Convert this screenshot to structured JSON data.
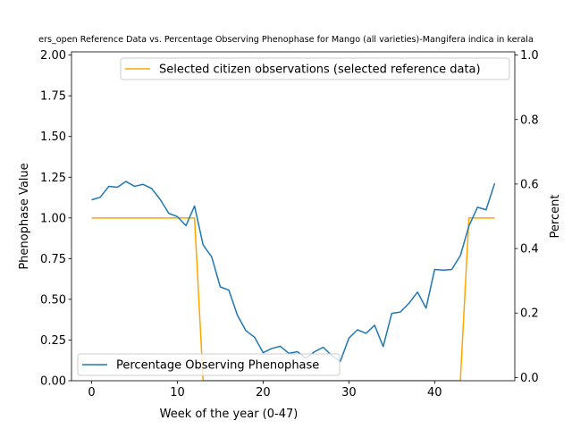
{
  "chart_data": {
    "type": "line",
    "title": "ers_open Reference Data vs. Percentage Observing Phenophase for Mango (all varieties)-Mangifera indica in kerala",
    "xlabel": "Week of the year (0-47)",
    "ylabel_left": "Phenophase Value",
    "ylabel_right": "Percent",
    "xlim": [
      -2.35,
      49.35
    ],
    "ylim_left": [
      0,
      2.02
    ],
    "ylim_right": [
      -0.01,
      1.01
    ],
    "x_ticks": [
      "0",
      "10",
      "20",
      "30",
      "40"
    ],
    "y_left_ticks": [
      "0.00",
      "0.25",
      "0.50",
      "0.75",
      "1.00",
      "1.25",
      "1.50",
      "1.75",
      "2.00"
    ],
    "y_right_ticks": [
      "0.0",
      "0.2",
      "0.4",
      "0.6",
      "0.8",
      "1.0"
    ],
    "grid": false,
    "series": [
      {
        "name": "Selected citizen observations (selected reference data)",
        "axis": "left",
        "color": "#ffa500",
        "legend_position": "upper right",
        "x": [
          0,
          1,
          2,
          3,
          4,
          5,
          6,
          7,
          8,
          9,
          10,
          11,
          12,
          13,
          14,
          15,
          16,
          17,
          18,
          19,
          20,
          21,
          22,
          23,
          24,
          25,
          26,
          27,
          28,
          29,
          30,
          31,
          32,
          33,
          34,
          35,
          36,
          37,
          38,
          39,
          40,
          41,
          42,
          43,
          44,
          45,
          46,
          47
        ],
        "values": [
          1,
          1,
          1,
          1,
          1,
          1,
          1,
          1,
          1,
          1,
          1,
          1,
          1,
          0,
          0,
          0,
          0,
          0,
          0,
          0,
          0,
          0,
          0,
          0,
          0,
          0,
          0,
          0,
          0,
          0,
          0,
          0,
          0,
          0,
          0,
          0,
          0,
          0,
          0,
          0,
          0,
          0,
          0,
          0,
          1,
          1,
          1,
          1
        ]
      },
      {
        "name": "Percentage Observing Phenophase",
        "axis": "right",
        "color": "#1f77b4",
        "legend_position": "lower left",
        "x": [
          0,
          1,
          2,
          3,
          4,
          5,
          6,
          7,
          8,
          9,
          10,
          11,
          12,
          13,
          14,
          15,
          16,
          17,
          18,
          19,
          20,
          21,
          22,
          23,
          24,
          25,
          26,
          27,
          28,
          29,
          30,
          31,
          32,
          33,
          34,
          35,
          36,
          37,
          38,
          39,
          40,
          41,
          42,
          43,
          44,
          45,
          46,
          47
        ],
        "values": [
          0.551,
          0.559,
          0.593,
          0.59,
          0.608,
          0.593,
          0.599,
          0.586,
          0.552,
          0.509,
          0.499,
          0.471,
          0.532,
          0.411,
          0.374,
          0.281,
          0.271,
          0.193,
          0.145,
          0.125,
          0.077,
          0.09,
          0.097,
          0.075,
          0.08,
          0.06,
          0.08,
          0.094,
          0.068,
          0.05,
          0.122,
          0.148,
          0.137,
          0.162,
          0.096,
          0.199,
          0.203,
          0.23,
          0.265,
          0.215,
          0.335,
          0.333,
          0.335,
          0.378,
          0.47,
          0.528,
          0.52,
          0.602
        ]
      }
    ]
  }
}
